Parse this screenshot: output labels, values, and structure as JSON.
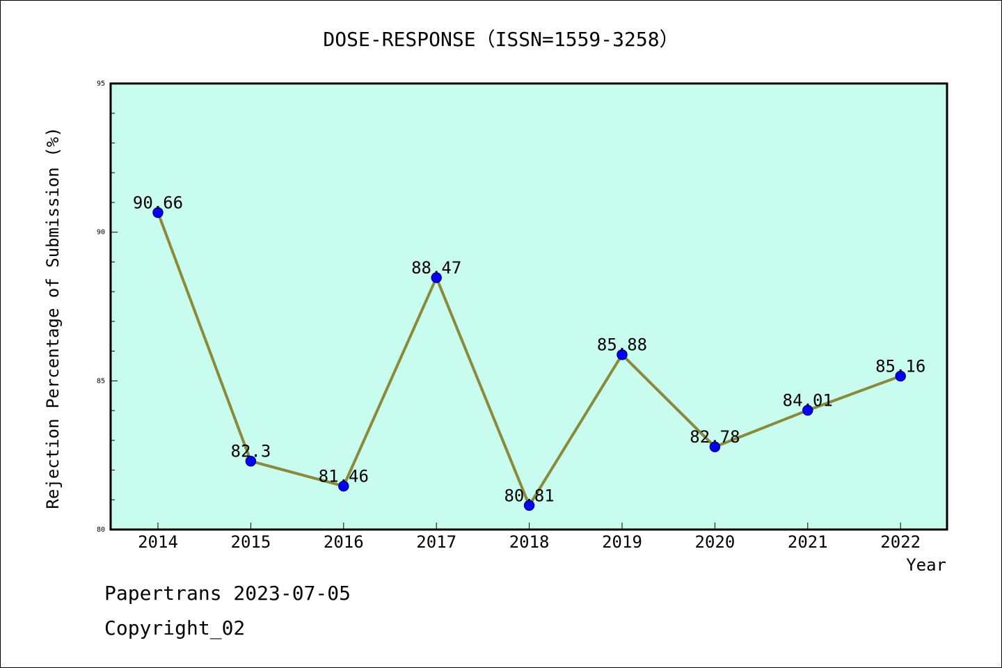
{
  "chart_data": {
    "type": "line",
    "title": "DOSE-RESPONSE（ISSN=1559-3258）",
    "xlabel": "Year",
    "ylabel": "Rejection Percentage of Submission (%)",
    "categories": [
      "2014",
      "2015",
      "2016",
      "2017",
      "2018",
      "2019",
      "2020",
      "2021",
      "2022"
    ],
    "values": [
      90.66,
      82.3,
      81.46,
      88.47,
      80.81,
      85.88,
      82.78,
      84.01,
      85.16
    ],
    "data_labels": [
      "90.66",
      "82.3",
      "81.46",
      "88.47",
      "80.81",
      "85.88",
      "82.78",
      "84.01",
      "85.16"
    ],
    "ylim": [
      80,
      95
    ],
    "yticks": [
      80,
      85,
      90,
      95
    ],
    "grid": false,
    "colors": {
      "plot_background": "#c8fcee",
      "line": "#8b8a3a",
      "marker": "#0000ff",
      "marker_edge": "#00008b"
    }
  },
  "footer": {
    "line1": "Papertrans 2023-07-05",
    "line2": "Copyright_02"
  }
}
